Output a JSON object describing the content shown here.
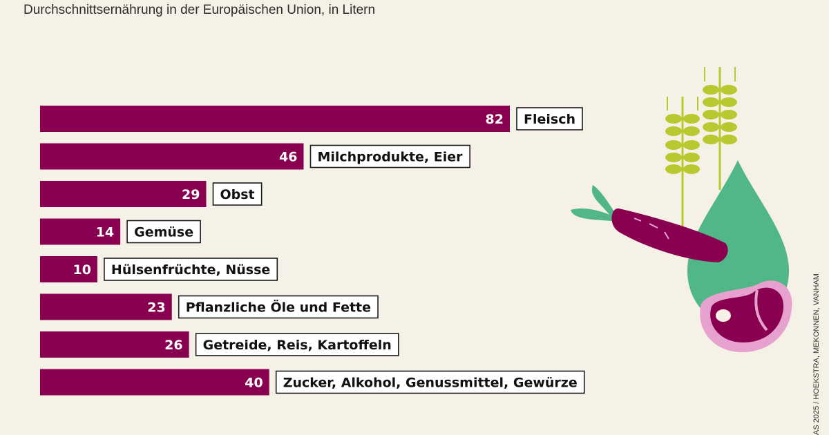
{
  "subtitle": "Durchschnittsernährung in der Europäischen Union, in Litern",
  "credit": "AS 2025 / HOEKSTRA, MEKONNEN, VANHAM",
  "colors": {
    "bar": "#8a0051",
    "background": "#f5f1e6"
  },
  "chart_data": {
    "type": "bar",
    "orientation": "horizontal",
    "title": "",
    "subtitle": "Durchschnittsernährung in der Europäischen Union, in Litern",
    "categories": [
      "Fleisch",
      "Milchprodukte, Eier",
      "Obst",
      "Gemüse",
      "Hülsenfrüchte, Nüsse",
      "Pflanzliche Öle und Fette",
      "Getreide, Reis, Kartoffeln",
      "Zucker, Alkohol, Genussmittel, Gewürze"
    ],
    "values": [
      82,
      46,
      29,
      14,
      10,
      23,
      26,
      40
    ],
    "value_labels": [
      "82",
      "46",
      "29",
      "14",
      "10",
      "23",
      "26",
      "40"
    ],
    "grid": false,
    "legend": "none"
  }
}
